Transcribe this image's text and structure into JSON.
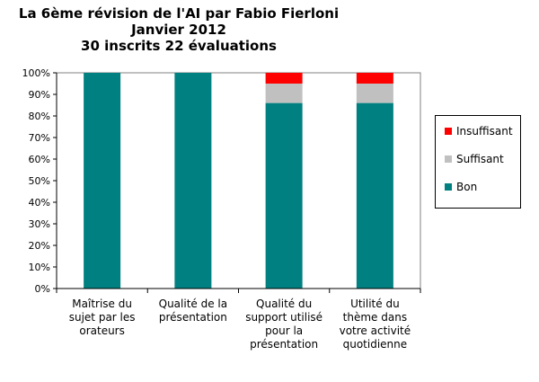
{
  "chart_data": {
    "type": "bar",
    "stacked": true,
    "title": [
      "La 6ème révision de l'AI par Fabio Fierloni",
      "Janvier 2012",
      "30 inscrits 22 évaluations"
    ],
    "categories": [
      [
        "Maîtrise du",
        "sujet par les",
        "orateurs"
      ],
      [
        "Qualité de la",
        "présentation"
      ],
      [
        "Qualité du",
        "support utilisé",
        "pour la",
        "présentation"
      ],
      [
        "Utilité du",
        "thème dans",
        "votre activité",
        "quotidienne"
      ]
    ],
    "series": [
      {
        "name": "Bon",
        "color": "#008080",
        "values": [
          100,
          100,
          86,
          86
        ]
      },
      {
        "name": "Suffisant",
        "color": "#c0c0c0",
        "values": [
          0,
          0,
          9,
          9
        ]
      },
      {
        "name": "Insuffisant",
        "color": "#ff0000",
        "values": [
          0,
          0,
          5,
          5
        ]
      }
    ],
    "ylim": [
      0,
      100
    ],
    "ytick_step": 10,
    "yticks": [
      "0%",
      "10%",
      "20%",
      "30%",
      "40%",
      "50%",
      "60%",
      "70%",
      "80%",
      "90%",
      "100%"
    ],
    "grid": false,
    "legend_position": "right",
    "legend_order": [
      "Insuffisant",
      "Suffisant",
      "Bon"
    ]
  }
}
